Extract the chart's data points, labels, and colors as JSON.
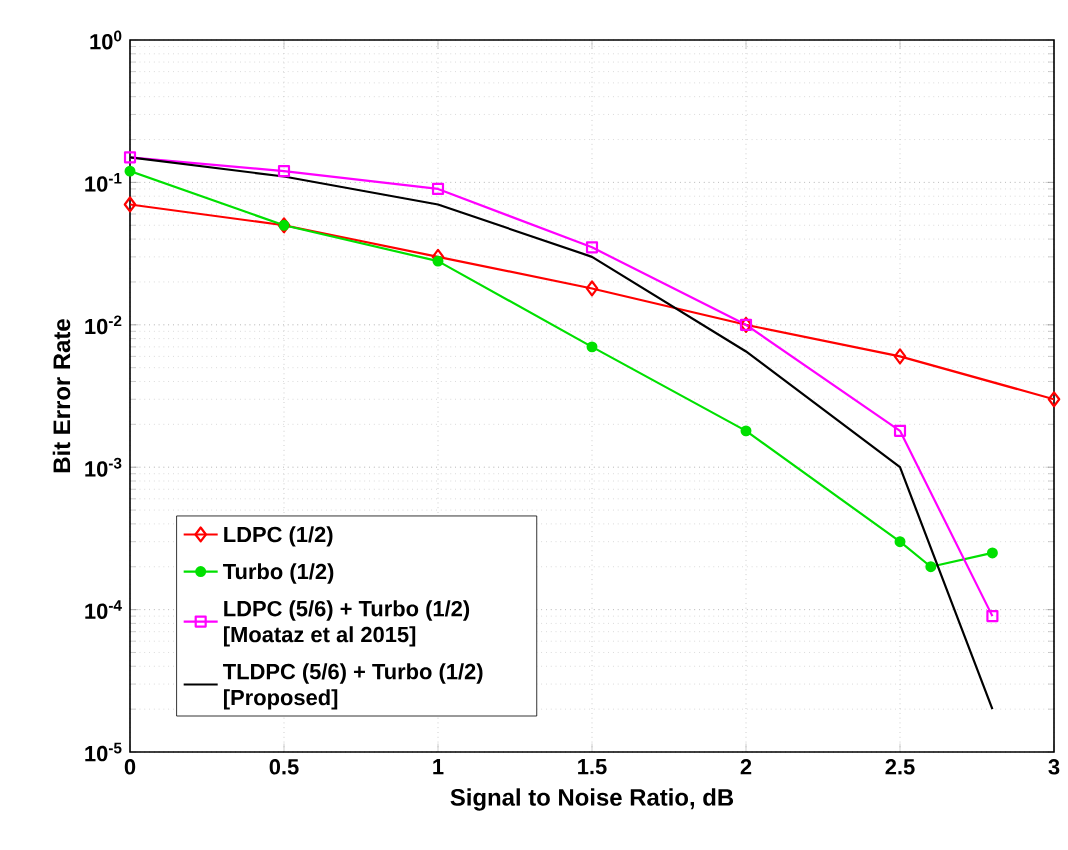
{
  "chart_data": {
    "type": "line",
    "xlabel": "Signal to Noise Ratio, dB",
    "ylabel": "Bit Error Rate",
    "log": "y",
    "grid": true,
    "legend": "bottom left",
    "xlim": [
      0,
      3
    ],
    "ylim": [
      1e-05,
      1
    ],
    "xticks": [
      0,
      0.5,
      1,
      1.5,
      2,
      2.5,
      3
    ],
    "yticks": [
      {
        "value": 1e-05,
        "label": "10$^{-5}$"
      },
      {
        "value": 0.0001,
        "label": "10$^{-4}$"
      },
      {
        "value": 0.001,
        "label": "10$^{-3}$"
      },
      {
        "value": 0.01,
        "label": "10$^{-2}$"
      },
      {
        "value": 0.1,
        "label": "10$^{-1}$"
      },
      {
        "value": 1,
        "label": "10$^{0}$"
      }
    ],
    "series": [
      {
        "name": "LDPC (1/2)",
        "color": "#ff0000",
        "marker": "diamond",
        "x": [
          0,
          0.5,
          1,
          1.5,
          2,
          2.5,
          3
        ],
        "values": [
          0.07,
          0.05,
          0.03,
          0.018,
          0.01,
          0.006,
          0.003
        ]
      },
      {
        "name": "Turbo (1/2)",
        "color": "#00e000",
        "marker": "circle",
        "x": [
          0,
          0.5,
          1,
          1.5,
          2,
          2.5,
          2.6,
          2.8
        ],
        "values": [
          0.12,
          0.05,
          0.028,
          0.007,
          0.0018,
          0.0003,
          0.0002,
          0.00025
        ]
      },
      {
        "name": "LDPC (5/6) + Turbo (1/2) [Moataz et al 2015]",
        "color": "#ff00ff",
        "marker": "square",
        "x": [
          0,
          0.5,
          1,
          1.5,
          2,
          2.5,
          2.8
        ],
        "values": [
          0.15,
          0.12,
          0.09,
          0.035,
          0.01,
          0.0018,
          9e-05
        ]
      },
      {
        "name": "TLDPC (5/6) + Turbo (1/2) [Proposed]",
        "color": "#000000",
        "marker": "none",
        "x": [
          0,
          0.5,
          1,
          1.5,
          2,
          2.5,
          2.8
        ],
        "values": [
          0.15,
          0.11,
          0.07,
          0.03,
          0.0065,
          0.001,
          2e-05
        ]
      }
    ]
  }
}
